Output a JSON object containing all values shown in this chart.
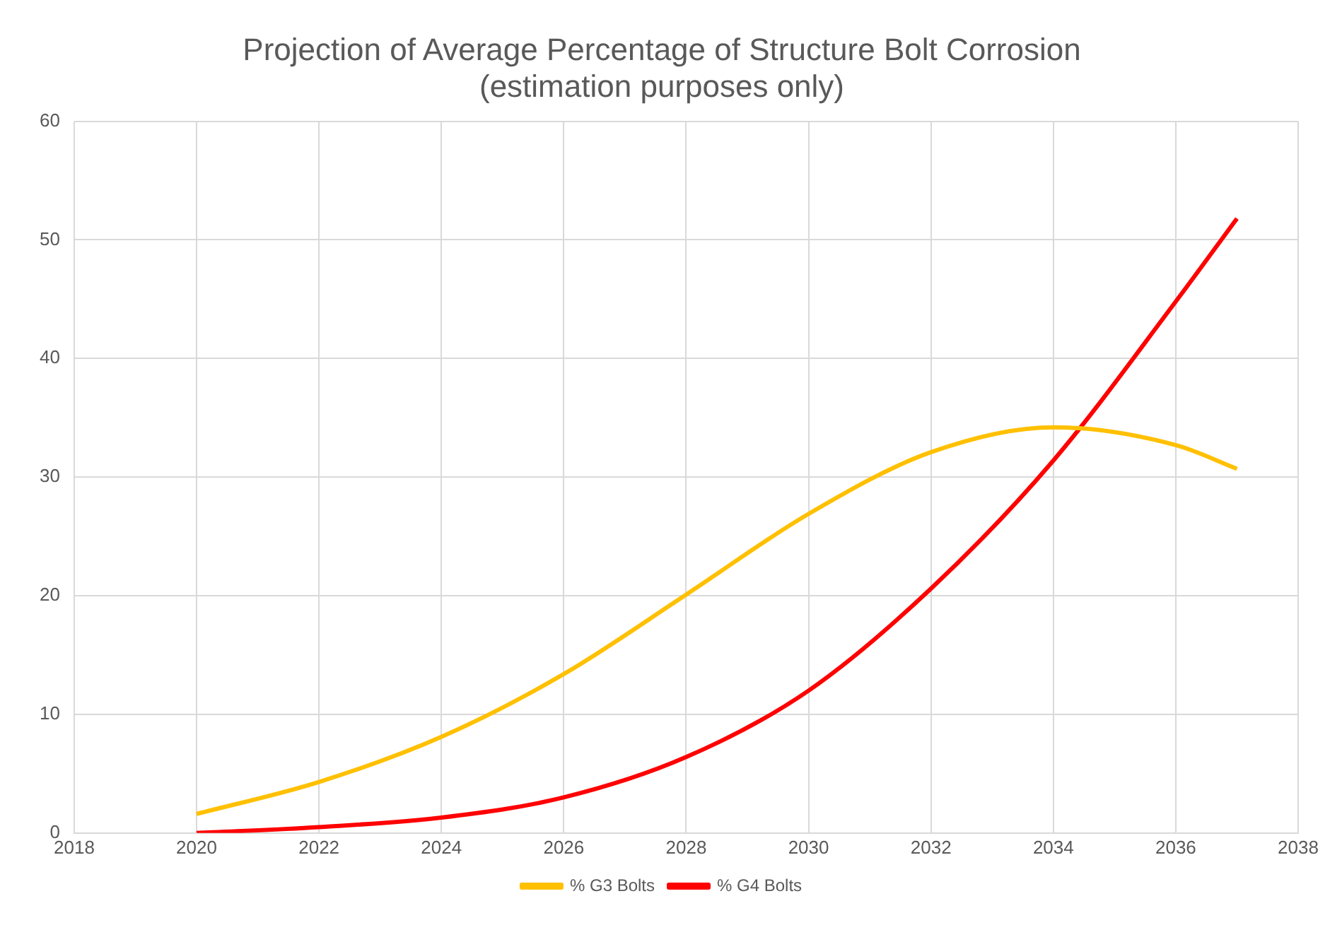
{
  "chart_data": {
    "type": "line",
    "title": [
      "Projection of Average Percentage of Structure Bolt Corrosion",
      "(estimation purposes only)"
    ],
    "x": [
      2020,
      2022,
      2024,
      2026,
      2028,
      2030,
      2032,
      2034,
      2036,
      2037
    ],
    "series": [
      {
        "name": "% G3 Bolts",
        "color": "#ffc000",
        "values": [
          1.6,
          4.3,
          8.1,
          13.4,
          20.1,
          26.9,
          32.1,
          34.2,
          32.7,
          30.7
        ]
      },
      {
        "name": "% G4 Bolts",
        "color": "#ff0000",
        "values": [
          0,
          0.5,
          1.3,
          3.0,
          6.4,
          12.0,
          20.6,
          31.4,
          44.8,
          51.8
        ]
      }
    ],
    "xlim": [
      2018,
      2038
    ],
    "xticks": [
      2018,
      2020,
      2022,
      2024,
      2026,
      2028,
      2030,
      2032,
      2034,
      2036,
      2038
    ],
    "ylim": [
      0,
      60
    ],
    "yticks": [
      0,
      10,
      20,
      30,
      40,
      50,
      60
    ],
    "grid": true,
    "legend": "bottom",
    "marker": "none",
    "line_style": "solid"
  }
}
